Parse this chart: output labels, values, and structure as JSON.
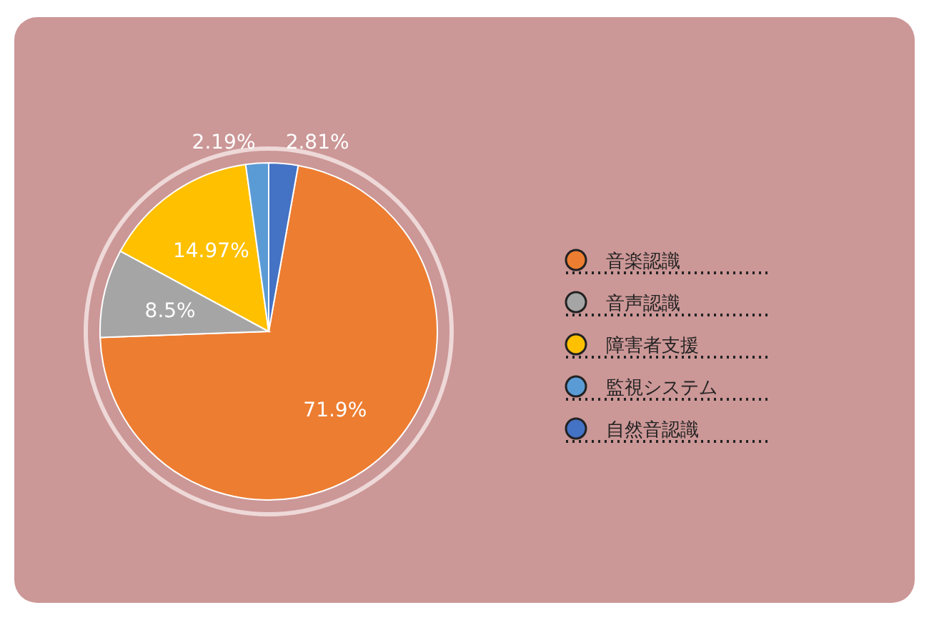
{
  "chart_data": {
    "type": "pie",
    "categories": [
      "音楽認識",
      "音声認識",
      "障害者支援",
      "監視システム",
      "自然音認識"
    ],
    "values": [
      71.9,
      8.5,
      14.97,
      2.19,
      2.81
    ],
    "colors": [
      "#ed7d31",
      "#a5a5a5",
      "#ffc000",
      "#5b9bd5",
      "#4472c4"
    ],
    "value_labels": [
      "71.9%",
      "8.5%",
      "14.97%",
      "2.19%",
      "2.81%"
    ],
    "legend": "right"
  }
}
